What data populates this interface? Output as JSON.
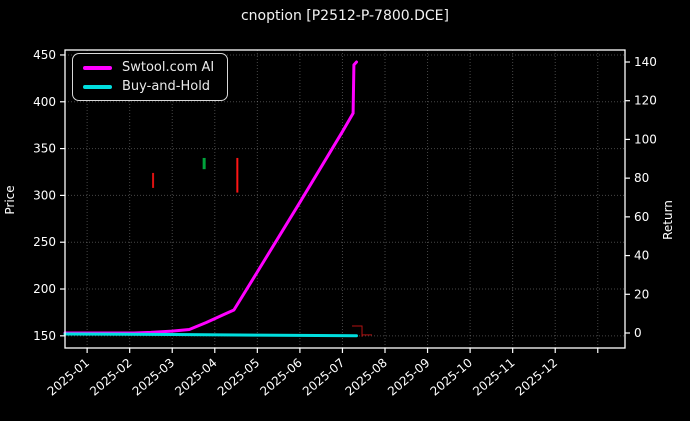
{
  "window": {
    "title": "cnoption [P2512-P-7800.DCE]"
  },
  "chart_data": {
    "type": "line",
    "title": "cnoption [P2512-P-7800.DCE]",
    "background": "#000000",
    "text_color": "#ffffff",
    "grid": {
      "show": true,
      "style": "dotted",
      "color": "rgba(255,255,255,0.28)"
    },
    "x_axis": {
      "unit": "months since 2025-01",
      "range": [
        -0.52,
        12.64
      ],
      "label_rotation_deg": -40,
      "ticks": [
        {
          "pos": 0,
          "label": "2025-01"
        },
        {
          "pos": 1,
          "label": "2025-02"
        },
        {
          "pos": 2,
          "label": "2025-03"
        },
        {
          "pos": 3,
          "label": "2025-04"
        },
        {
          "pos": 4,
          "label": "2025-05"
        },
        {
          "pos": 5,
          "label": "2025-06"
        },
        {
          "pos": 6,
          "label": "2025-07"
        },
        {
          "pos": 7,
          "label": "2025-08"
        },
        {
          "pos": 8,
          "label": "2025-09"
        },
        {
          "pos": 9,
          "label": "2025-10"
        },
        {
          "pos": 10,
          "label": "2025-11"
        },
        {
          "pos": 11,
          "label": "2025-12"
        },
        {
          "pos": 12,
          "label": ""
        }
      ]
    },
    "left_axis": {
      "label": "Price",
      "range": [
        137,
        455.3
      ],
      "ticks": [
        150,
        200,
        250,
        300,
        350,
        400,
        450
      ]
    },
    "right_axis": {
      "label": "Return",
      "range": [
        -7.75,
        146.2
      ],
      "ticks": [
        0,
        20,
        40,
        60,
        80,
        100,
        120,
        140
      ]
    },
    "series": [
      {
        "name": "Swtool.com AI",
        "color": "#ff00ff",
        "axis": "right",
        "line_width": 3,
        "points": [
          [
            -0.52,
            0
          ],
          [
            1.1,
            0
          ],
          [
            1.5,
            0.3
          ],
          [
            2.0,
            1.0
          ],
          [
            2.4,
            1.8
          ],
          [
            2.8,
            5.4
          ],
          [
            3.2,
            9.4
          ],
          [
            3.45,
            11.9
          ],
          [
            4.0,
            31.5
          ],
          [
            5.0,
            67.5
          ],
          [
            6.0,
            104
          ],
          [
            6.25,
            113.5
          ],
          [
            6.27,
            138.5
          ],
          [
            6.33,
            140
          ]
        ]
      },
      {
        "name": "Buy-and-Hold",
        "color": "#00dede",
        "axis": "right",
        "line_width": 3,
        "points": [
          [
            -0.52,
            -0.5
          ],
          [
            2.0,
            -0.8
          ],
          [
            4.0,
            -1.1
          ],
          [
            6.33,
            -1.4
          ]
        ]
      }
    ],
    "candlesticks": [
      {
        "x": 1.55,
        "low": 308,
        "high": 324,
        "color": "#dd1111",
        "width": 2
      },
      {
        "x": 2.75,
        "low": 328,
        "high": 340,
        "color": "#00a33c",
        "width": 3
      },
      {
        "x": 3.53,
        "low": 303,
        "high": 340,
        "color": "#ff1515",
        "width": 2
      },
      {
        "x": 6.46,
        "low": 149,
        "high": 161,
        "open": 160.5,
        "close": 151,
        "color": "#b31212",
        "width": 1
      }
    ],
    "legend": {
      "position": "upper-left",
      "entries": [
        {
          "label": "Swtool.com AI",
          "color": "#ff00ff"
        },
        {
          "label": "Buy-and-Hold",
          "color": "#00dede"
        }
      ]
    }
  }
}
